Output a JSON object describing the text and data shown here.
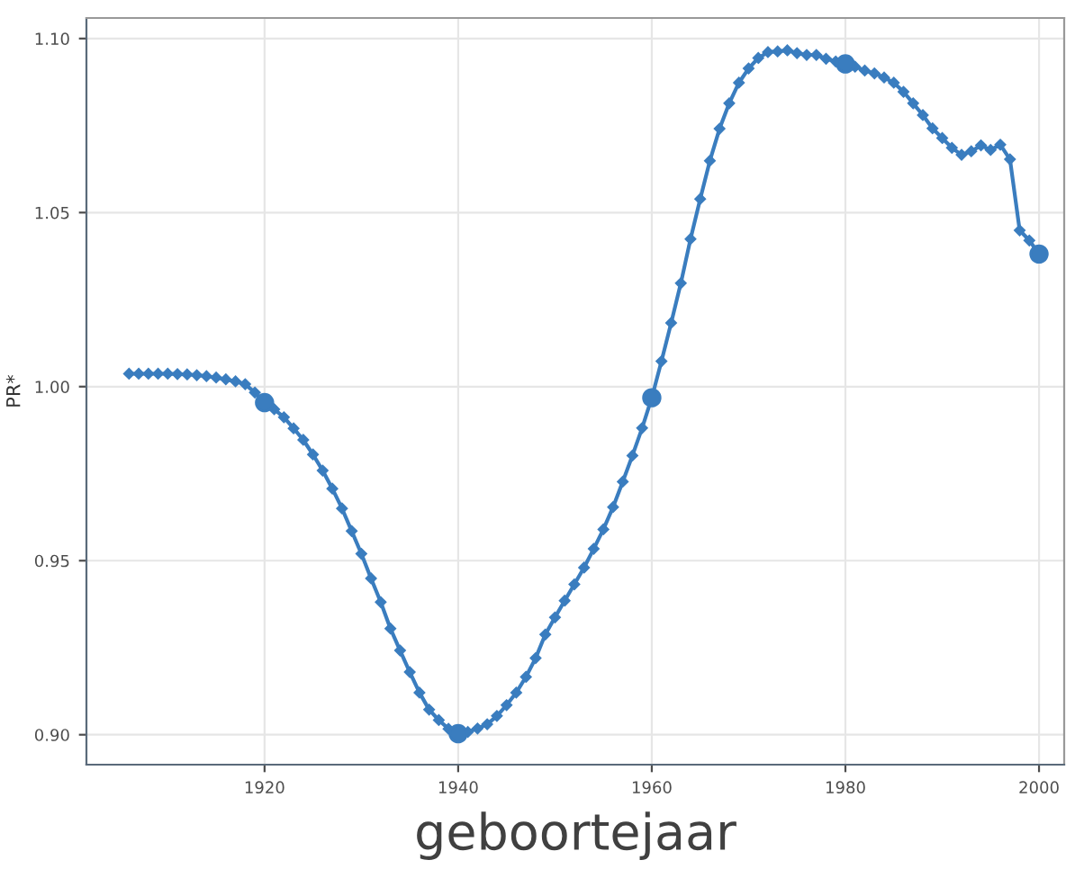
{
  "chart_data": {
    "type": "line",
    "xlabel": "geboortejaar",
    "ylabel": "PR*",
    "xlim": [
      1901.6,
      2002.6
    ],
    "ylim": [
      0.8914,
      1.1059
    ],
    "xticks": [
      1920,
      1940,
      1960,
      1980,
      2000
    ],
    "yticks": [
      {
        "value": 0.9,
        "label": "0.90"
      },
      {
        "value": 0.95,
        "label": "0.95"
      },
      {
        "value": 1.0,
        "label": "1.00"
      },
      {
        "value": 1.05,
        "label": "1.05"
      },
      {
        "value": 1.1,
        "label": "1.10"
      }
    ],
    "grid": true,
    "legend": false,
    "line_style": "solid",
    "series": [
      {
        "marker": "diamond",
        "color": "#3a7dbf",
        "x": [
          1906,
          1907,
          1908,
          1909,
          1910,
          1911,
          1912,
          1913,
          1914,
          1915,
          1916,
          1917,
          1918,
          1919,
          1920,
          1921,
          1922,
          1923,
          1924,
          1925,
          1926,
          1927,
          1928,
          1929,
          1930,
          1931,
          1932,
          1933,
          1934,
          1935,
          1936,
          1937,
          1938,
          1939,
          1940,
          1941,
          1942,
          1943,
          1944,
          1945,
          1946,
          1947,
          1948,
          1949,
          1950,
          1951,
          1952,
          1953,
          1954,
          1955,
          1956,
          1957,
          1958,
          1959,
          1960,
          1961,
          1962,
          1963,
          1964,
          1965,
          1966,
          1967,
          1968,
          1969,
          1970,
          1971,
          1972,
          1973,
          1974,
          1975,
          1976,
          1977,
          1978,
          1979,
          1980,
          1981,
          1982,
          1983,
          1984,
          1985,
          1986,
          1987,
          1988,
          1989,
          1990,
          1991,
          1992,
          1993,
          1994,
          1995,
          1996,
          1997,
          1998,
          1999,
          2000
        ],
        "values": [
          1.0037,
          1.0037,
          1.0037,
          1.0037,
          1.0037,
          1.0036,
          1.0035,
          1.0033,
          1.003,
          1.0026,
          1.0021,
          1.0015,
          1.0007,
          0.9983,
          0.9954,
          0.9935,
          0.9912,
          0.988,
          0.9847,
          0.9805,
          0.9759,
          0.9707,
          0.965,
          0.9585,
          0.952,
          0.9449,
          0.9381,
          0.9305,
          0.9242,
          0.918,
          0.9121,
          0.9072,
          0.9042,
          0.9017,
          0.9003,
          0.9008,
          0.9018,
          0.903,
          0.9054,
          0.9085,
          0.9121,
          0.9166,
          0.922,
          0.9288,
          0.9337,
          0.9385,
          0.9432,
          0.948,
          0.9534,
          0.959,
          0.9654,
          0.9727,
          0.9802,
          0.9881,
          0.9968,
          1.0073,
          1.0183,
          1.0297,
          1.0424,
          1.0539,
          1.0649,
          1.0741,
          1.0814,
          1.0873,
          1.0914,
          1.0944,
          1.0961,
          1.0963,
          1.0966,
          1.0958,
          1.0953,
          1.0953,
          1.0942,
          1.0934,
          1.0927,
          1.0919,
          1.0908,
          1.09,
          1.0888,
          1.0873,
          1.0847,
          1.0814,
          1.078,
          1.0742,
          1.0714,
          1.0686,
          1.0666,
          1.0676,
          1.0693,
          1.068,
          1.0695,
          1.0653,
          1.0449,
          1.042,
          1.0381
        ]
      },
      {
        "type": "scatter",
        "marker": "circle",
        "color": "#3a7dbf",
        "x": [
          1920,
          1940,
          1960,
          1980,
          2000
        ],
        "values": [
          0.9954,
          0.9003,
          0.9968,
          1.0927,
          1.0381
        ]
      }
    ]
  }
}
